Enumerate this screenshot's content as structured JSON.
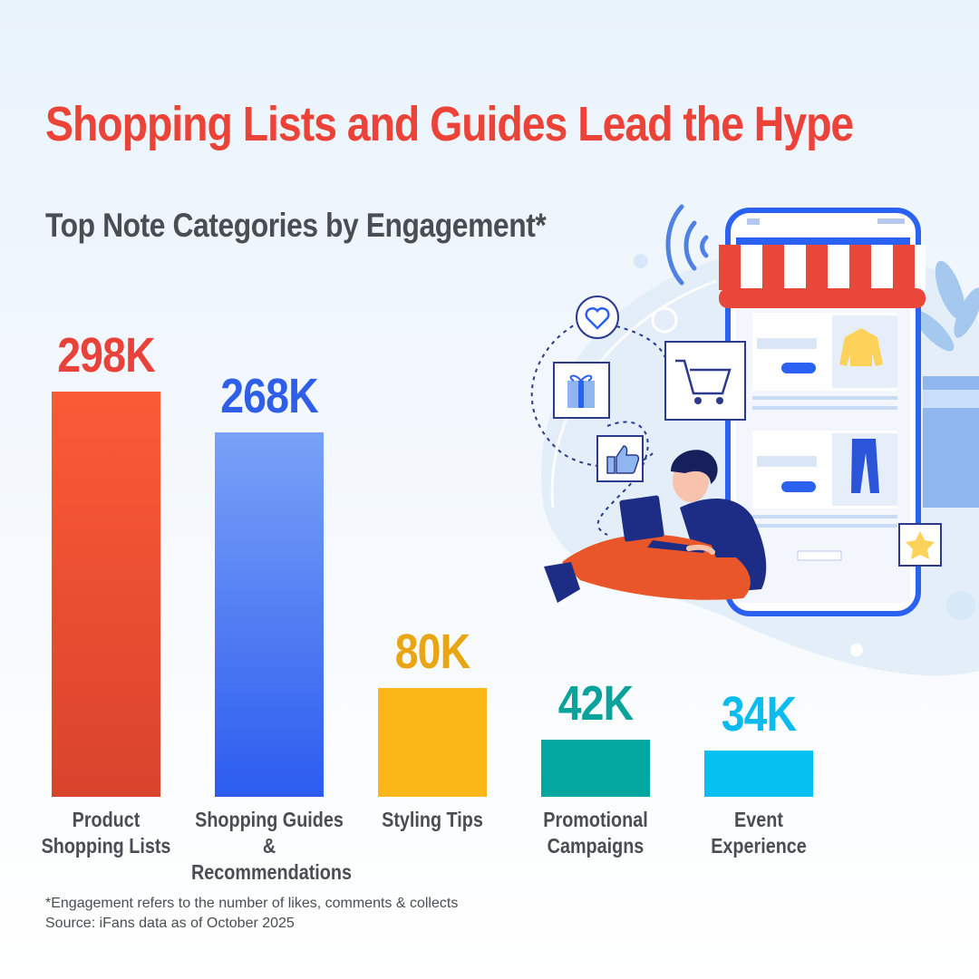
{
  "header": {
    "title": "Shopping Lists and Guides Lead the Hype",
    "subtitle": "Top Note Categories by Engagement*"
  },
  "chart_data": {
    "type": "bar",
    "title": "Top Note Categories by Engagement*",
    "categories": [
      "Product\nShopping Lists",
      "Shopping Guides &\nRecommendations",
      "Styling Tips",
      "Promotional\nCampaigns",
      "Event\nExperience"
    ],
    "values": [
      298,
      268,
      80,
      42,
      34
    ],
    "value_labels": [
      "298K",
      "268K",
      "80K",
      "42K",
      "34K"
    ],
    "colors": [
      "#ea4630",
      "#3d6ff0",
      "#fbb617",
      "#04a79f",
      "#06c0f2"
    ],
    "label_colors": [
      "#e8423a",
      "#2f5fe6",
      "#e9a512",
      "#0aa39b",
      "#0cbcef"
    ],
    "ylim": [
      0,
      298
    ],
    "xlabel": "",
    "ylabel": "",
    "grid": false,
    "legend": "none"
  },
  "footnotes": {
    "line1": "*Engagement refers to the number of likes, comments & collects",
    "line2": "Source: iFans data as of October 2025"
  },
  "illustration": {
    "icons": [
      "heart-icon",
      "gift-icon",
      "shopping-cart-icon",
      "thumbs-up-icon",
      "star-icon",
      "wifi-signal-icon"
    ]
  }
}
